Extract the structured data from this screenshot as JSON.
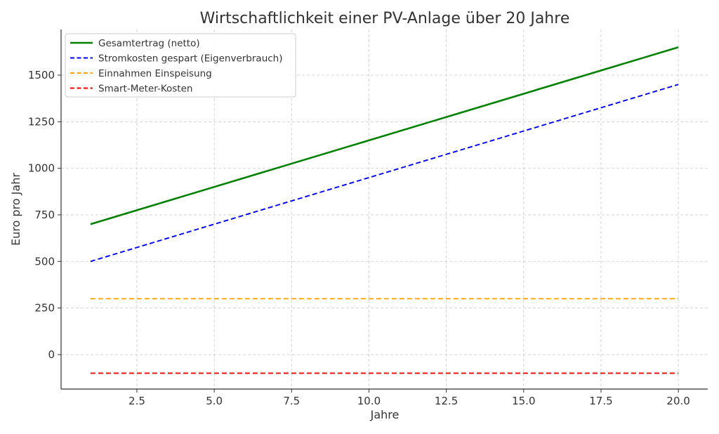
{
  "chart_data": {
    "type": "line",
    "title": "Wirtschaftlichkeit einer PV-Anlage über 20 Jahre",
    "xlabel": "Jahre",
    "ylabel": "Euro pro Jahr",
    "xlim": [
      0.05,
      20.95
    ],
    "ylim": [
      -185,
      1745
    ],
    "xticks": [
      2.5,
      5.0,
      7.5,
      10.0,
      12.5,
      15.0,
      17.5,
      20.0
    ],
    "xtick_labels": [
      "2.5",
      "5.0",
      "7.5",
      "10.0",
      "12.5",
      "15.0",
      "17.5",
      "20.0"
    ],
    "yticks": [
      0,
      250,
      500,
      750,
      1000,
      1250,
      1500
    ],
    "ytick_labels": [
      "0",
      "250",
      "500",
      "750",
      "1000",
      "1250",
      "1500"
    ],
    "grid": true,
    "legend_position": "top-left",
    "series": [
      {
        "name": "Gesamtertrag (netto)",
        "color": "#008000",
        "style": "solid",
        "x": [
          1,
          20
        ],
        "y": [
          700,
          1650
        ]
      },
      {
        "name": "Stromkosten gespart (Eigenverbrauch)",
        "color": "#0000ee",
        "style": "dashed",
        "x": [
          1,
          20
        ],
        "y": [
          500,
          1450
        ]
      },
      {
        "name": "Einnahmen Einspeisung",
        "color": "#ffa500",
        "style": "dashed",
        "x": [
          1,
          20
        ],
        "y": [
          300,
          300
        ]
      },
      {
        "name": "Smart-Meter-Kosten",
        "color": "#ee0000",
        "style": "dashed",
        "x": [
          1,
          20
        ],
        "y": [
          -100,
          -100
        ]
      }
    ]
  }
}
